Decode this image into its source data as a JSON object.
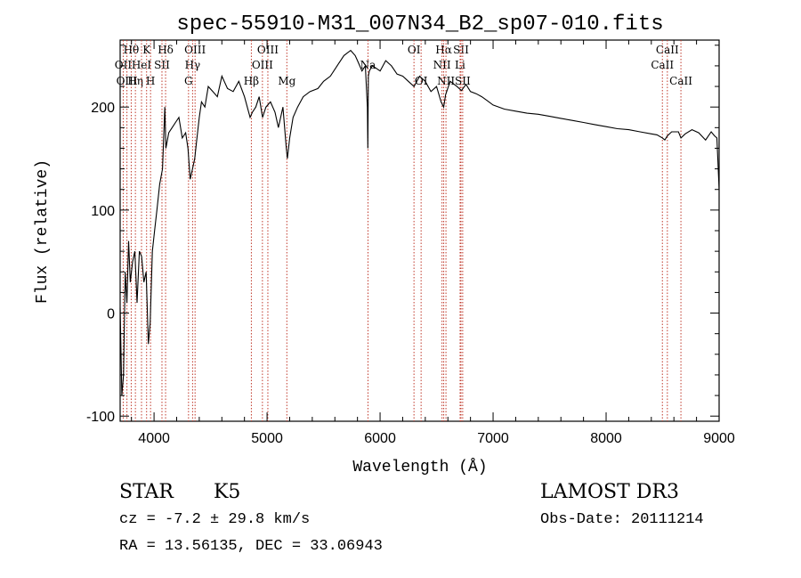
{
  "chart_data": {
    "type": "line",
    "title": "spec-55910-M31_007N34_B2_sp07-010.fits",
    "xlabel": "Wavelength (Å)",
    "ylabel": "Flux (relative)",
    "xlim": [
      3700,
      9000
    ],
    "ylim": [
      -105,
      265
    ],
    "x_ticks": [
      4000,
      5000,
      6000,
      7000,
      8000,
      9000
    ],
    "y_ticks": [
      -100,
      0,
      100,
      200
    ],
    "series": [
      {
        "name": "flux",
        "x": [
          3700,
          3715,
          3730,
          3745,
          3760,
          3775,
          3790,
          3810,
          3830,
          3850,
          3870,
          3890,
          3910,
          3930,
          3950,
          3965,
          3985,
          4005,
          4025,
          4050,
          4075,
          4095,
          4105,
          4130,
          4160,
          4190,
          4220,
          4250,
          4280,
          4300,
          4320,
          4340,
          4360,
          4380,
          4400,
          4420,
          4450,
          4480,
          4520,
          4560,
          4600,
          4650,
          4700,
          4750,
          4800,
          4850,
          4870,
          4900,
          4930,
          4960,
          4990,
          5030,
          5070,
          5100,
          5140,
          5170,
          5180,
          5200,
          5230,
          5270,
          5320,
          5380,
          5450,
          5500,
          5560,
          5620,
          5680,
          5740,
          5780,
          5800,
          5820,
          5840,
          5870,
          5888,
          5892,
          5896,
          5905,
          5930,
          5960,
          6000,
          6050,
          6100,
          6150,
          6200,
          6250,
          6300,
          6350,
          6400,
          6450,
          6500,
          6540,
          6563,
          6580,
          6620,
          6680,
          6720,
          6760,
          6800,
          6850,
          6900,
          6950,
          7000,
          7100,
          7200,
          7300,
          7400,
          7500,
          7600,
          7700,
          7800,
          7900,
          8000,
          8100,
          8200,
          8300,
          8400,
          8450,
          8498,
          8520,
          8542,
          8580,
          8640,
          8662,
          8700,
          8760,
          8820,
          8880,
          8930,
          8960,
          8980,
          9000
        ],
        "y": [
          5,
          -80,
          -60,
          40,
          10,
          70,
          30,
          50,
          60,
          10,
          60,
          55,
          30,
          40,
          -30,
          -10,
          60,
          80,
          100,
          125,
          140,
          200,
          160,
          175,
          180,
          185,
          190,
          170,
          175,
          160,
          130,
          140,
          150,
          170,
          190,
          205,
          200,
          220,
          215,
          210,
          230,
          218,
          215,
          225,
          210,
          190,
          195,
          200,
          210,
          190,
          200,
          205,
          195,
          180,
          200,
          160,
          150,
          170,
          190,
          200,
          210,
          215,
          218,
          225,
          230,
          240,
          250,
          255,
          250,
          245,
          240,
          235,
          240,
          200,
          160,
          230,
          235,
          240,
          238,
          235,
          245,
          240,
          232,
          230,
          225,
          220,
          230,
          225,
          215,
          220,
          205,
          200,
          212,
          225,
          220,
          216,
          222,
          215,
          213,
          210,
          206,
          202,
          198,
          196,
          194,
          193,
          191,
          189,
          187,
          185,
          183,
          181,
          179,
          178,
          176,
          174,
          173,
          170,
          168,
          172,
          176,
          176,
          170,
          174,
          178,
          175,
          168,
          176,
          172,
          170,
          120
        ]
      }
    ],
    "lines": [
      {
        "label": "Hθ",
        "x": 3798,
        "row": 1
      },
      {
        "label": "OII",
        "x": 3727,
        "row": 2
      },
      {
        "label": "OIII",
        "x": 3760,
        "row": 3
      },
      {
        "label": "Hη",
        "x": 3835,
        "row": 3
      },
      {
        "label": "HeI",
        "x": 3889,
        "row": 2
      },
      {
        "label": "K",
        "x": 3934,
        "row": 1
      },
      {
        "label": "SII",
        "x": 4070,
        "row": 2
      },
      {
        "label": "H",
        "x": 3969,
        "row": 3
      },
      {
        "label": "Hδ",
        "x": 4102,
        "row": 1
      },
      {
        "label": "OIII",
        "x": 4363,
        "row": 1
      },
      {
        "label": "Hγ",
        "x": 4341,
        "row": 2
      },
      {
        "label": "G",
        "x": 4305,
        "row": 3
      },
      {
        "label": "Hβ",
        "x": 4861,
        "row": 3
      },
      {
        "label": "OIII",
        "x": 5007,
        "row": 1
      },
      {
        "label": "OIII",
        "x": 4959,
        "row": 2
      },
      {
        "label": "Mg",
        "x": 5175,
        "row": 3
      },
      {
        "label": "Na",
        "x": 5893,
        "row": 2
      },
      {
        "label": "OI",
        "x": 6300,
        "row": 1
      },
      {
        "label": "OI",
        "x": 6363,
        "row": 3
      },
      {
        "label": "Hα",
        "x": 6563,
        "row": 1
      },
      {
        "label": "SII",
        "x": 6716,
        "row": 1
      },
      {
        "label": "NII",
        "x": 6548,
        "row": 2
      },
      {
        "label": "Li",
        "x": 6708,
        "row": 2
      },
      {
        "label": "NII",
        "x": 6583,
        "row": 3
      },
      {
        "label": "SII",
        "x": 6731,
        "row": 3
      },
      {
        "label": "CaII",
        "x": 8542,
        "row": 1
      },
      {
        "label": "CaII",
        "x": 8498,
        "row": 2
      },
      {
        "label": "CaII",
        "x": 8662,
        "row": 3
      }
    ]
  },
  "footer": {
    "class_label": "STAR",
    "subclass_label": "K5",
    "survey_label": "LAMOST DR3",
    "cz_text": "cz = -7.2 ± 29.8 km/s",
    "obs_date_text": "Obs-Date: 20111214",
    "radec_text": "RA =  13.56135, DEC =  33.06943"
  },
  "colors": {
    "axis": "#000000",
    "spectrum": "#000000",
    "line_marker": "#c0392b"
  }
}
